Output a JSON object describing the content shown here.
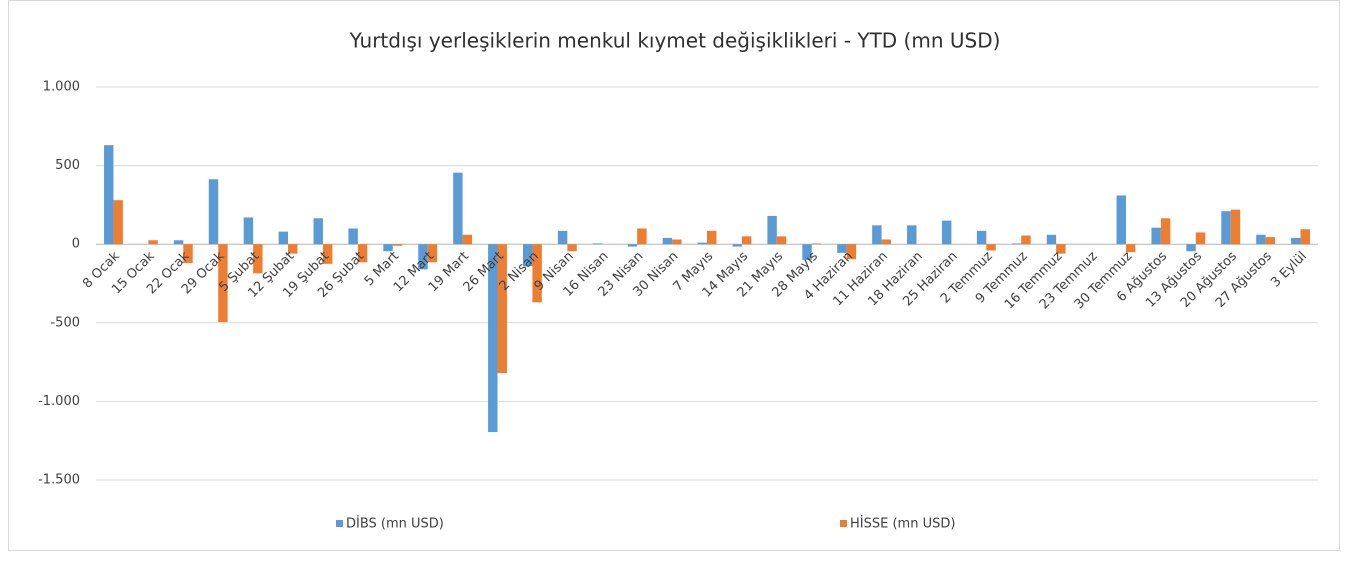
{
  "chart_data": {
    "type": "bar",
    "title": "Yurtdışı yerleşiklerin menkul kıymet değişiklikleri - YTD (mn USD)",
    "categories": [
      "8 Ocak",
      "15 Ocak",
      "22 Ocak",
      "29 Ocak",
      "5 Şubat",
      "12 Şubat",
      "19 Şubat",
      "26 Şubat",
      "5 Mart",
      "12 Mart",
      "19 Mart",
      "26 Mart",
      "2 Nisan",
      "9 Nisan",
      "16 Nisan",
      "23 Nisan",
      "30 Nisan",
      "7 Mayıs",
      "14 Mayıs",
      "21 Mayıs",
      "28 Mayıs",
      "4 Haziran",
      "11 Haziran",
      "18 Haziran",
      "25 Haziran",
      "2 Temmuz",
      "9 Temmuz",
      "16 Temmuz",
      "23 Temmuz",
      "30 Temmuz",
      "6 Ağustos",
      "13 Ağustos",
      "20 Ağustos",
      "27 Ağustos",
      "3 Eylül"
    ],
    "series": [
      {
        "name": "DİBS (mn USD)",
        "color": "#5b9bd5",
        "values": [
          630,
          0,
          25,
          413,
          170,
          80,
          165,
          100,
          -45,
          -160,
          455,
          -1195,
          -140,
          85,
          5,
          -15,
          40,
          10,
          -15,
          180,
          -100,
          -55,
          120,
          120,
          150,
          85,
          5,
          60,
          0,
          310,
          105,
          -45,
          210,
          60,
          40
        ]
      },
      {
        "name": "HİSSE (mn USD)",
        "color": "#ed7d31",
        "values": [
          280,
          25,
          -120,
          -495,
          -185,
          -60,
          -125,
          -115,
          -10,
          -115,
          60,
          -820,
          -370,
          -45,
          0,
          100,
          30,
          85,
          50,
          50,
          5,
          -95,
          30,
          0,
          0,
          -40,
          55,
          -60,
          0,
          -50,
          165,
          75,
          220,
          45,
          95
        ]
      }
    ],
    "ylim": [
      -1500,
      1000
    ],
    "yticks": [
      {
        "value": 1000,
        "label": "1.000"
      },
      500,
      0,
      -500,
      {
        "value": -1000,
        "label": "-1.000"
      },
      {
        "value": -1500,
        "label": "-1.500"
      }
    ],
    "grid": true,
    "legend": "bottom"
  }
}
